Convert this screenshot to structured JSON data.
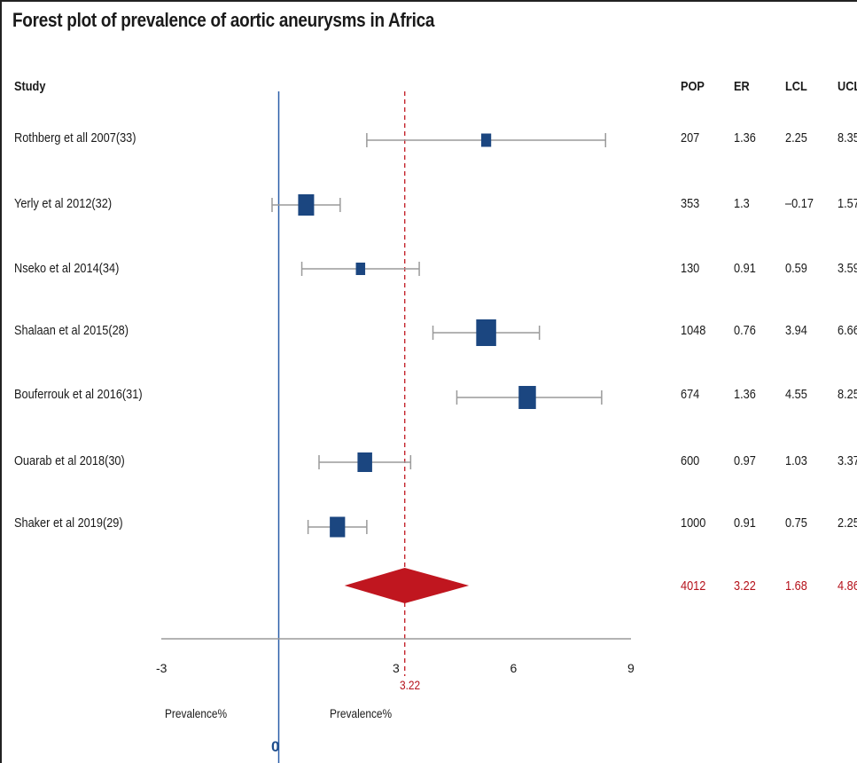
{
  "chart_data": {
    "type": "forest",
    "title": "Forest plot of prevalence of aortic aneurysms in Africa",
    "columns": {
      "study": "Study",
      "pop": "POP",
      "er": "ER",
      "lcl": "LCL",
      "ucl": "UCL"
    },
    "studies": [
      {
        "name": "Rothberg et all 2007(33)",
        "pop": "207",
        "er": "1.36",
        "lcl": "2.25",
        "ucl": "8.35",
        "estimate": 5.3,
        "ci": [
          2.25,
          8.35
        ],
        "weight": 0.55
      },
      {
        "name": "Yerly et al 2012(32)",
        "pop": "353",
        "er": "1.3",
        "lcl": "–0.17",
        "ucl": "1.57",
        "estimate": 0.7,
        "ci": [
          -0.17,
          1.57
        ],
        "weight": 1.0
      },
      {
        "name": "Nseko et al 2014(34)",
        "pop": "130",
        "er": "0.91",
        "lcl": "0.59",
        "ucl": "3.59",
        "estimate": 2.09,
        "ci": [
          0.59,
          3.59
        ],
        "weight": 0.5
      },
      {
        "name": "Shalaan et al 2015(28)",
        "pop": "1048",
        "er": "0.76",
        "lcl": "3.94",
        "ucl": "6.66",
        "estimate": 5.3,
        "ci": [
          3.94,
          6.66
        ],
        "weight": 1.3
      },
      {
        "name": "Bouferrouk et al 2016(31)",
        "pop": "674",
        "er": "1.36",
        "lcl": "4.55",
        "ucl": "8.25",
        "estimate": 6.35,
        "ci": [
          4.55,
          8.25
        ],
        "weight": 1.1
      },
      {
        "name": "Ouarab et al 2018(30)",
        "pop": "600",
        "er": "0.97",
        "lcl": "1.03",
        "ucl": "3.37",
        "estimate": 2.2,
        "ci": [
          1.03,
          3.37
        ],
        "weight": 0.9
      },
      {
        "name": "Shaker et al 2019(29)",
        "pop": "1000",
        "er": "0.91",
        "lcl": "0.75",
        "ucl": "2.25",
        "estimate": 1.5,
        "ci": [
          0.75,
          2.25
        ],
        "weight": 0.95
      }
    ],
    "pooled": {
      "pop": "4012",
      "er": "3.22",
      "lcl": "1.68",
      "ucl": "4.86",
      "estimate": 3.22,
      "ci": [
        1.68,
        4.86
      ]
    },
    "pooled_label": "3.22",
    "null_line_label": "0",
    "x_ticks": [
      "-3",
      "3",
      "6",
      "9"
    ],
    "xlim": [
      -3,
      9
    ],
    "xlabel_left": "Prevalence%",
    "xlabel_right": "Prevalence%",
    "colors": {
      "box": "#1b4680",
      "diamond": "#c0161f",
      "ci": "#9a9a9a",
      "null_line": "#2a5ea8",
      "pooled_line": "#c0161f",
      "axis": "#9a9a9a",
      "pooled_text": "#b5121b"
    }
  }
}
